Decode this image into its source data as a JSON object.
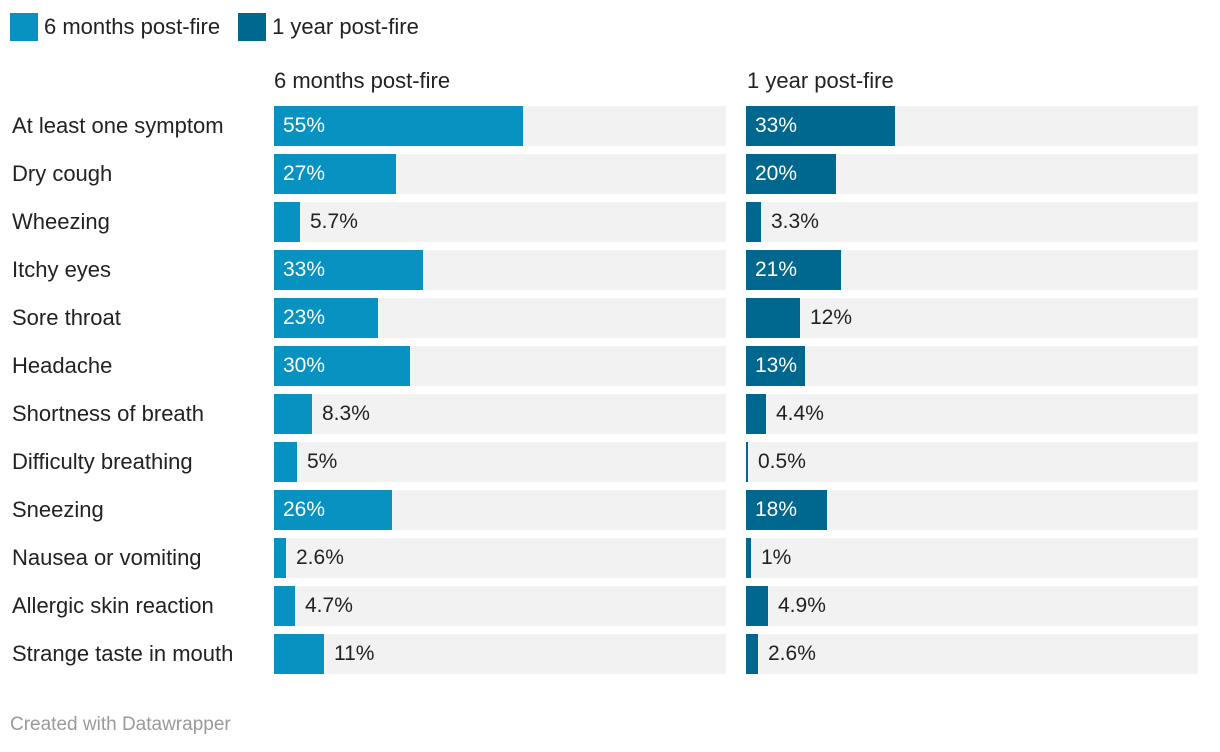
{
  "colors": {
    "series_6m": "#0892c2",
    "series_1y": "#00678f",
    "track": "#f2f2f2"
  },
  "legend": [
    {
      "label": "6 months post-fire"
    },
    {
      "label": "1 year post-fire"
    }
  ],
  "chart_data": {
    "type": "bar",
    "orientation": "horizontal",
    "layout": "small-multiples",
    "xlim": [
      0,
      100
    ],
    "grid": false,
    "legend_position": "top-left",
    "categories": [
      "At least one symptom",
      "Dry cough",
      "Wheezing",
      "Itchy eyes",
      "Sore throat",
      "Headache",
      "Shortness of breath",
      "Difficulty breathing",
      "Sneezing",
      "Nausea or vomiting",
      "Allergic skin reaction",
      "Strange taste in mouth"
    ],
    "series": [
      {
        "name": "6 months post-fire",
        "values": [
          55,
          27,
          5.7,
          33,
          23,
          30,
          8.3,
          5,
          26,
          2.6,
          4.7,
          11
        ],
        "labels": [
          "55%",
          "27%",
          "5.7%",
          "33%",
          "23%",
          "30%",
          "8.3%",
          "5%",
          "26%",
          "2.6%",
          "4.7%",
          "11%"
        ]
      },
      {
        "name": "1 year post-fire",
        "values": [
          33,
          20,
          3.3,
          21,
          12,
          13,
          4.4,
          0.5,
          18,
          1,
          4.9,
          2.6
        ],
        "labels": [
          "33%",
          "20%",
          "3.3%",
          "21%",
          "12%",
          "13%",
          "4.4%",
          "0.5%",
          "18%",
          "1%",
          "4.9%",
          "2.6%"
        ]
      }
    ]
  },
  "footer": "Created with Datawrapper"
}
